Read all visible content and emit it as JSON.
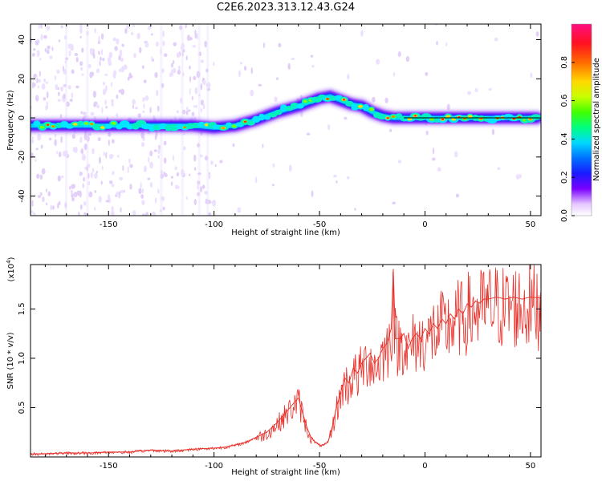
{
  "title": "C2E6.2023.313.12.43.G24",
  "chart_data": [
    {
      "type": "heatmap",
      "xlabel": "Height of straight line (km)",
      "ylabel": "Frequency (Hz)",
      "xlim": [
        -187,
        55
      ],
      "ylim": [
        -50,
        48
      ],
      "xticks": [
        -150,
        -100,
        -50,
        0,
        50
      ],
      "yticks": [
        -40,
        -20,
        0,
        20,
        40
      ],
      "xtick_labels": [
        "-150",
        "-100",
        "-50",
        "0",
        "50"
      ],
      "ytick_labels": [
        "-40",
        "-20",
        "0",
        "20",
        "40"
      ],
      "ridge": {
        "x": [
          -187,
          -170,
          -150,
          -130,
          -110,
          -100,
          -90,
          -80,
          -70,
          -60,
          -50,
          -45,
          -40,
          -35,
          -30,
          -25,
          -20,
          -15,
          -10,
          -5,
          0,
          10,
          20,
          30,
          40,
          53
        ],
        "y": [
          -4,
          -4,
          -4,
          -4,
          -4,
          -5,
          -4,
          -1,
          3,
          6,
          10,
          11,
          9,
          7,
          6,
          3,
          1,
          0,
          0,
          0,
          0,
          0,
          0,
          0,
          0,
          0
        ]
      },
      "colorbar": {
        "label": "Normalized spectral amplitude",
        "range": [
          0,
          1
        ],
        "ticks": [
          0.0,
          0.2,
          0.4,
          0.6,
          0.8
        ],
        "tick_labels": [
          "0.0",
          "0.2",
          "0.4",
          "0.6",
          "0.8"
        ]
      },
      "grid": false
    },
    {
      "type": "line",
      "xlabel": "Height of straight line (km)",
      "ylabel": "SNR (10 * v/v)",
      "y_multiplier": "(x10",
      "y_multiplier_exp": "4",
      "y_multiplier_close": ")",
      "xlim": [
        -187,
        55
      ],
      "ylim": [
        0,
        1.95
      ],
      "xticks": [
        -150,
        -100,
        -50,
        0,
        50
      ],
      "yticks": [
        0.5,
        1.0,
        1.5
      ],
      "xtick_labels": [
        "-150",
        "-100",
        "-50",
        "0",
        "50"
      ],
      "ytick_labels": [
        "0.5",
        "1.0",
        "1.5"
      ],
      "series": [
        {
          "color": "#e8302a",
          "x": [
            -187,
            -170,
            -160,
            -150,
            -140,
            -130,
            -120,
            -110,
            -100,
            -95,
            -90,
            -85,
            -80,
            -75,
            -70,
            -66,
            -62,
            -60,
            -58,
            -56,
            -54,
            -52,
            -50,
            -48,
            -46,
            -44,
            -42,
            -40,
            -38,
            -36,
            -34,
            -32,
            -30,
            -28,
            -26,
            -24,
            -22,
            -20,
            -18,
            -16,
            -15,
            -14,
            -12,
            -10,
            -8,
            -6,
            -4,
            -2,
            0,
            2,
            4,
            6,
            8,
            10,
            12,
            14,
            16,
            18,
            20,
            22,
            24,
            26,
            28,
            30,
            34,
            38,
            42,
            46,
            50,
            55
          ],
          "y": [
            0.03,
            0.04,
            0.04,
            0.05,
            0.05,
            0.07,
            0.06,
            0.08,
            0.09,
            0.1,
            0.12,
            0.15,
            0.2,
            0.25,
            0.35,
            0.45,
            0.55,
            0.6,
            0.45,
            0.3,
            0.2,
            0.15,
            0.12,
            0.12,
            0.15,
            0.3,
            0.5,
            0.65,
            0.8,
            0.75,
            0.9,
            0.85,
            0.95,
            1.0,
            1.05,
            0.95,
            1.0,
            1.1,
            1.15,
            1.3,
            1.9,
            1.2,
            1.2,
            1.25,
            1.1,
            1.2,
            1.25,
            1.2,
            1.3,
            1.25,
            1.35,
            1.3,
            1.4,
            1.35,
            1.45,
            1.4,
            1.5,
            1.45,
            1.55,
            1.52,
            1.58,
            1.56,
            1.6,
            1.6,
            1.62,
            1.6,
            1.62,
            1.6,
            1.62,
            1.61
          ]
        }
      ],
      "grid": false
    }
  ]
}
